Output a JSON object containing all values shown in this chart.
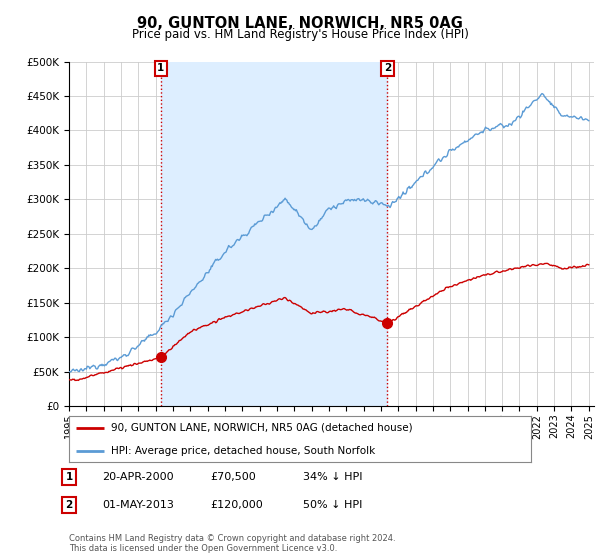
{
  "title": "90, GUNTON LANE, NORWICH, NR5 0AG",
  "subtitle": "Price paid vs. HM Land Registry's House Price Index (HPI)",
  "legend_line1": "90, GUNTON LANE, NORWICH, NR5 0AG (detached house)",
  "legend_line2": "HPI: Average price, detached house, South Norfolk",
  "sale1_date": "20-APR-2000",
  "sale1_price": "£70,500",
  "sale1_hpi": "34% ↓ HPI",
  "sale1_year": 2000.3,
  "sale1_value": 70500,
  "sale2_date": "01-MAY-2013",
  "sale2_price": "£120,000",
  "sale2_hpi": "50% ↓ HPI",
  "sale2_year": 2013.37,
  "sale2_value": 120000,
  "footer": "Contains HM Land Registry data © Crown copyright and database right 2024.\nThis data is licensed under the Open Government Licence v3.0.",
  "red_color": "#cc0000",
  "blue_color": "#5b9bd5",
  "shade_color": "#ddeeff",
  "ylim": [
    0,
    500000
  ],
  "yticks": [
    0,
    50000,
    100000,
    150000,
    200000,
    250000,
    300000,
    350000,
    400000,
    450000,
    500000
  ],
  "xlim_start": 1995.0,
  "xlim_end": 2025.3,
  "background": "#ffffff",
  "grid_color": "#cccccc"
}
